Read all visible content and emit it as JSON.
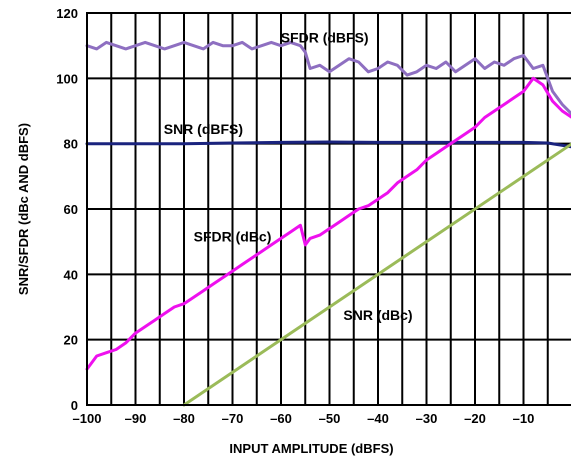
{
  "chart_data": {
    "type": "line",
    "xlabel": "INPUT AMPLITUDE (dBFS)",
    "ylabel": "SNR/SFDR (dBc AND dBFS)",
    "xlim": [
      -100,
      0
    ],
    "ylim": [
      0,
      120
    ],
    "xticks": [
      -100,
      -90,
      -80,
      -70,
      -60,
      -50,
      -40,
      -30,
      -20,
      -10
    ],
    "yticks": [
      0,
      20,
      40,
      60,
      80,
      100,
      120
    ],
    "grid": true,
    "series": [
      {
        "name": "SFDR (dBFS)",
        "color": "#8e6fc1",
        "x": [
          -100,
          -98,
          -96,
          -94,
          -92,
          -90,
          -88,
          -86,
          -84,
          -82,
          -80,
          -78,
          -76,
          -74,
          -72,
          -70,
          -68,
          -66,
          -64,
          -62,
          -60,
          -58,
          -56,
          -55,
          -54,
          -52,
          -50,
          -48,
          -46,
          -44,
          -42,
          -40,
          -38,
          -36,
          -34,
          -32,
          -30,
          -28,
          -26,
          -24,
          -22,
          -20,
          -18,
          -16,
          -14,
          -12,
          -10,
          -8,
          -6,
          -4,
          -2,
          0
        ],
        "y": [
          110,
          109,
          111,
          110,
          109,
          110,
          111,
          110,
          109,
          110,
          111,
          110,
          109,
          111,
          110,
          110,
          111,
          109,
          110,
          111,
          110,
          111,
          110,
          108,
          103,
          104,
          102,
          104,
          106,
          105,
          102,
          103,
          105,
          104,
          101,
          102,
          104,
          103,
          105,
          102,
          104,
          106,
          103,
          105,
          104,
          106,
          107,
          103,
          104,
          96,
          92,
          89
        ]
      },
      {
        "name": "SNR (dBFS)",
        "color": "#1a237e",
        "x": [
          -100,
          -90,
          -80,
          -70,
          -60,
          -50,
          -40,
          -30,
          -20,
          -10,
          -5,
          0
        ],
        "y": [
          80,
          80,
          80,
          80.2,
          80.4,
          80.5,
          80.4,
          80.4,
          80.4,
          80.4,
          80.2,
          79
        ]
      },
      {
        "name": "SFDR (dBc)",
        "color": "#ee10ee",
        "x": [
          -100,
          -98,
          -96,
          -94,
          -92,
          -90,
          -88,
          -86,
          -84,
          -82,
          -80,
          -78,
          -76,
          -74,
          -72,
          -70,
          -68,
          -66,
          -64,
          -62,
          -60,
          -58,
          -56,
          -55,
          -54,
          -52,
          -50,
          -48,
          -46,
          -44,
          -42,
          -40,
          -38,
          -36,
          -34,
          -32,
          -30,
          -28,
          -26,
          -24,
          -22,
          -20,
          -18,
          -16,
          -14,
          -12,
          -10,
          -8,
          -6,
          -4,
          -2,
          0
        ],
        "y": [
          11,
          15,
          16,
          17,
          19,
          22,
          24,
          26,
          28,
          30,
          31,
          33,
          35,
          37,
          39,
          41,
          43,
          45,
          47,
          49,
          51,
          53,
          55,
          49,
          51,
          52,
          54,
          56,
          58,
          60,
          61,
          63,
          65,
          68,
          70,
          72,
          75,
          77,
          79,
          81,
          83,
          85,
          88,
          90,
          92,
          94,
          96,
          100,
          98,
          93,
          90,
          88
        ]
      },
      {
        "name": "SNR (dBc)",
        "color": "#9bbb59",
        "x": [
          -80,
          0
        ],
        "y": [
          0,
          80
        ]
      }
    ]
  }
}
